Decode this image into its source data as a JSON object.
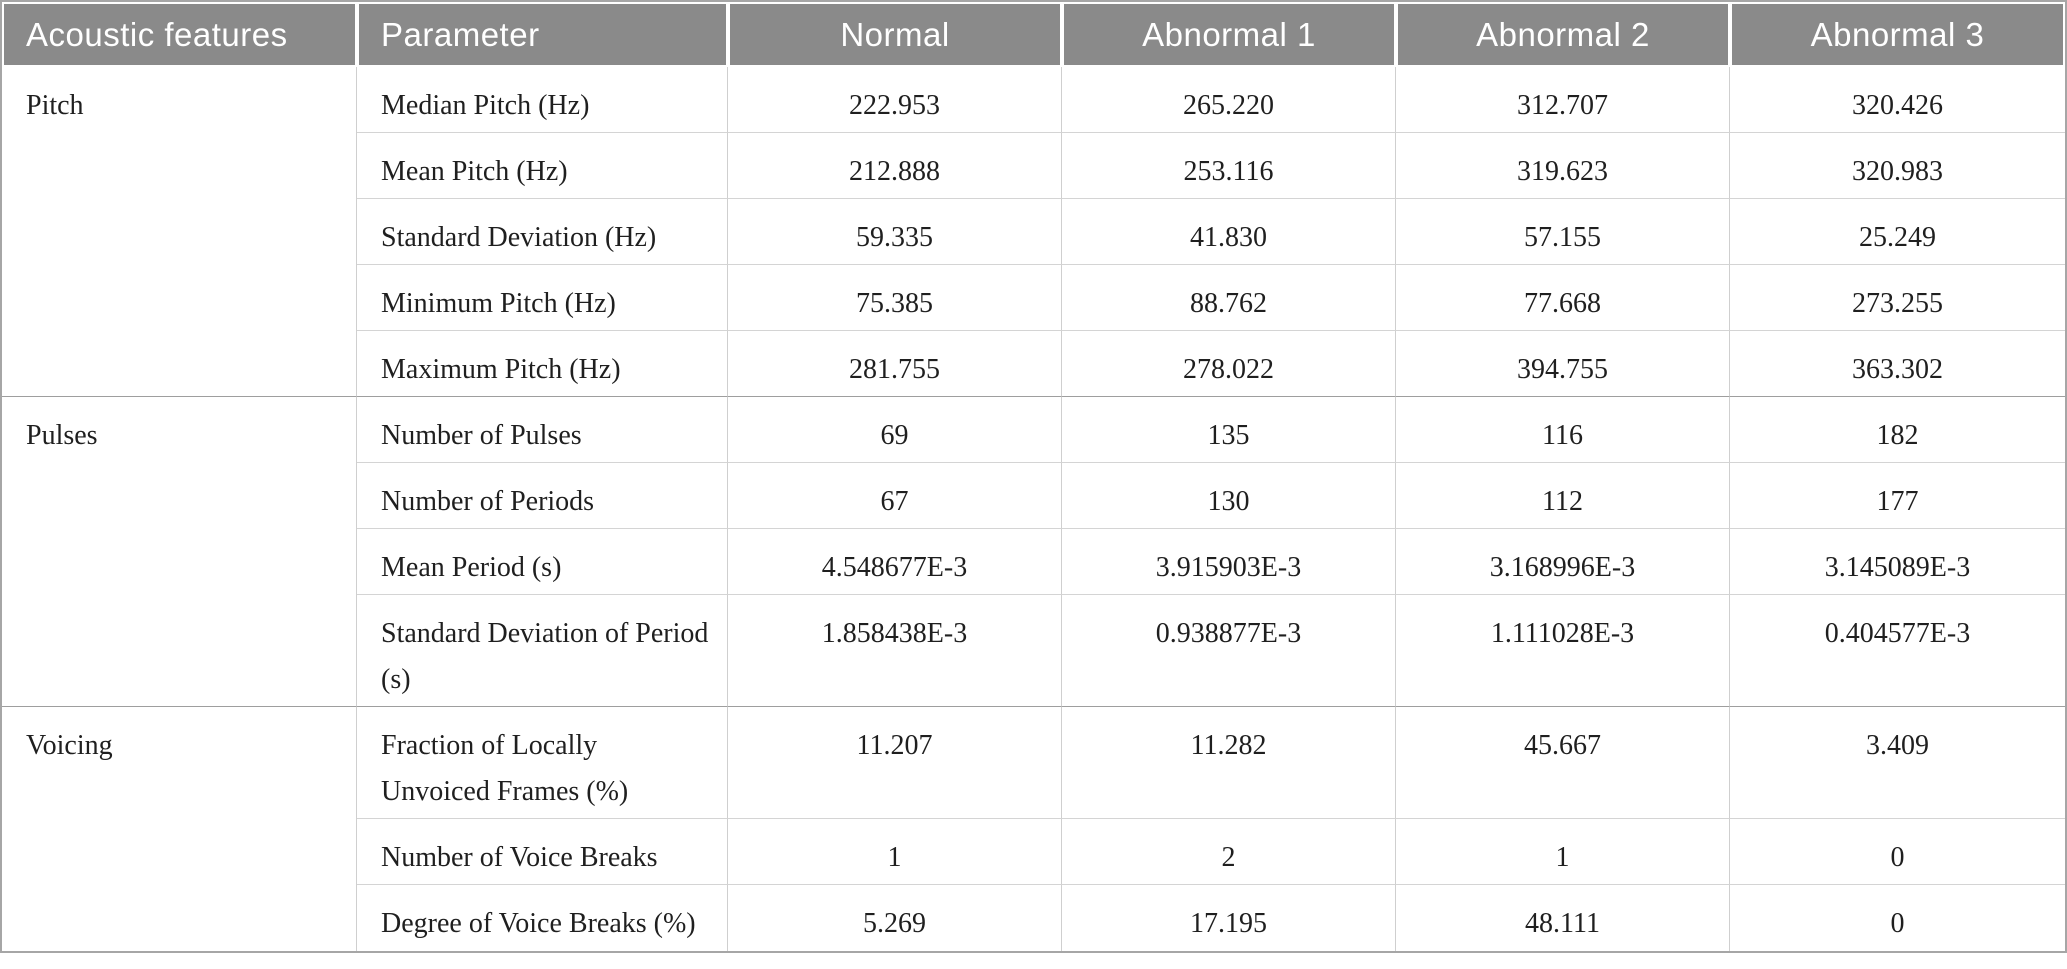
{
  "table": {
    "columns": [
      "Acoustic features",
      "Parameter",
      "Normal",
      "Abnormal 1",
      "Abnormal 2",
      "Abnormal 3"
    ],
    "groups": [
      {
        "feature": "Pitch",
        "rows": [
          {
            "parameter": "Median Pitch (Hz)",
            "values": [
              "222.953",
              "265.220",
              "312.707",
              "320.426"
            ]
          },
          {
            "parameter": "Mean Pitch (Hz)",
            "values": [
              "212.888",
              "253.116",
              "319.623",
              "320.983"
            ]
          },
          {
            "parameter": "Standard Deviation (Hz)",
            "values": [
              "59.335",
              "41.830",
              "57.155",
              "25.249"
            ]
          },
          {
            "parameter": "Minimum Pitch (Hz)",
            "values": [
              "75.385",
              "88.762",
              "77.668",
              "273.255"
            ]
          },
          {
            "parameter": "Maximum Pitch (Hz)",
            "values": [
              "281.755",
              "278.022",
              "394.755",
              "363.302"
            ]
          }
        ]
      },
      {
        "feature": "Pulses",
        "rows": [
          {
            "parameter": "Number of Pulses",
            "values": [
              "69",
              "135",
              "116",
              "182"
            ]
          },
          {
            "parameter": "Number of Periods",
            "values": [
              "67",
              "130",
              "112",
              "177"
            ]
          },
          {
            "parameter": "Mean Period (s)",
            "values": [
              "4.548677E-3",
              "3.915903E-3",
              "3.168996E-3",
              "3.145089E-3"
            ]
          },
          {
            "parameter": "Standard Deviation of Period (s)",
            "values": [
              "1.858438E-3",
              "0.938877E-3",
              "1.111028E-3",
              "0.404577E-3"
            ]
          }
        ]
      },
      {
        "feature": "Voicing",
        "rows": [
          {
            "parameter": "Fraction of Locally Unvoiced Frames (%)",
            "values": [
              "11.207",
              "11.282",
              "45.667",
              "3.409"
            ]
          },
          {
            "parameter": "Number of Voice Breaks",
            "values": [
              "1",
              "2",
              "1",
              "0"
            ]
          },
          {
            "parameter": "Degree of Voice Breaks (%)",
            "values": [
              "5.269",
              "17.195",
              "48.111",
              "0"
            ]
          }
        ]
      }
    ]
  },
  "colors": {
    "header_bg": "#8a8a8a",
    "header_text": "#ffffff",
    "body_text": "#1f1f1f",
    "row_border": "#d4d4d4",
    "section_border": "#9e9e9e",
    "outer_border": "#a6a6a6"
  }
}
